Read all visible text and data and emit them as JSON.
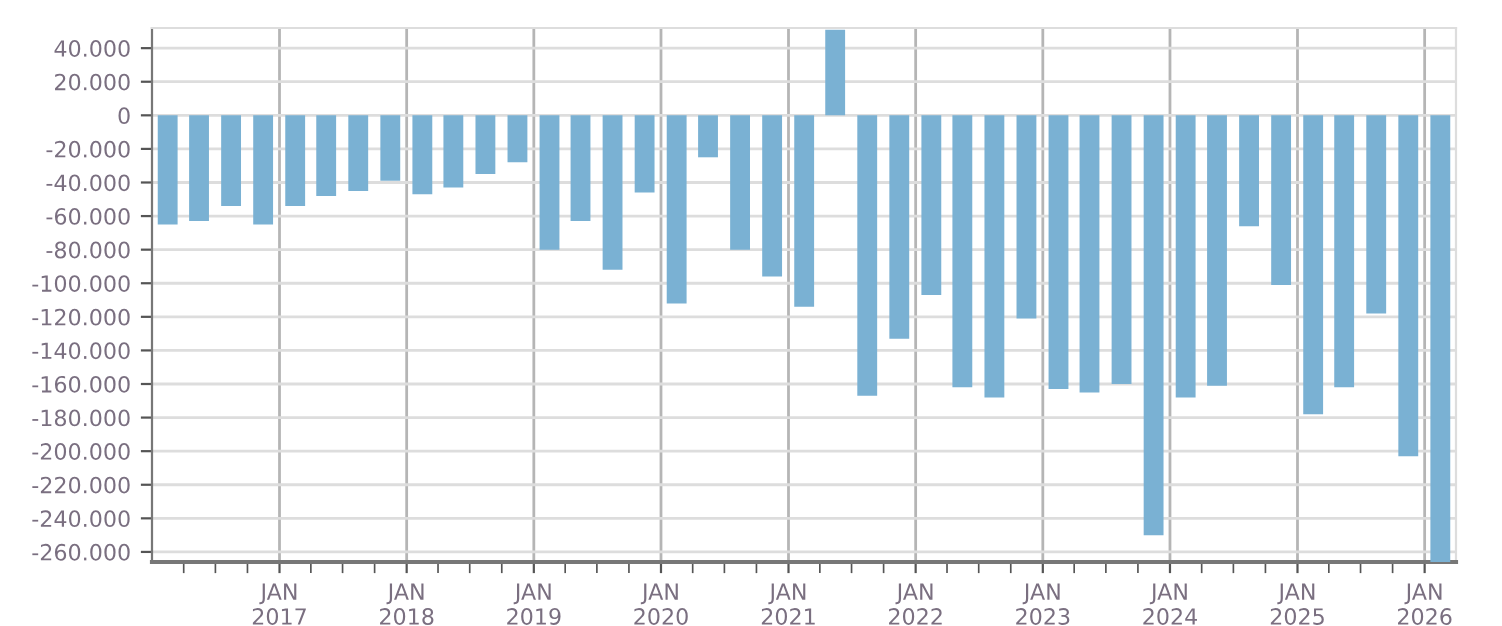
{
  "chart_data": {
    "type": "bar",
    "color": "#7ab1d3",
    "x": [
      "2016-02-15",
      "2016-05-15",
      "2016-08-15",
      "2016-11-15",
      "2017-02-15",
      "2017-05-15",
      "2017-08-15",
      "2017-11-15",
      "2018-02-15",
      "2018-05-15",
      "2018-08-15",
      "2018-11-15",
      "2019-02-15",
      "2019-05-15",
      "2019-08-15",
      "2019-11-15",
      "2020-02-15",
      "2020-05-15",
      "2020-08-15",
      "2020-11-15",
      "2021-02-15",
      "2021-05-15",
      "2021-08-15",
      "2021-11-15",
      "2022-02-15",
      "2022-05-15",
      "2022-08-15",
      "2022-11-15",
      "2023-02-15",
      "2023-05-15",
      "2023-08-15",
      "2023-11-15",
      "2024-02-15",
      "2024-05-15",
      "2024-08-15",
      "2024-11-15",
      "2025-02-15",
      "2025-05-15",
      "2025-08-15",
      "2025-11-15",
      "2026-02-15"
    ],
    "values": [
      -65000,
      -63000,
      -54000,
      -65000,
      -54000,
      -48000,
      -45000,
      -39000,
      -47000,
      -43000,
      -35000,
      -28000,
      -80000,
      -63000,
      -92000,
      -46000,
      -112000,
      -25000,
      -80000,
      -96000,
      -114000,
      51000,
      -167000,
      -133000,
      -107000,
      -162000,
      -168000,
      -121000,
      -163000,
      -165000,
      -160000,
      -250000,
      -168000,
      -161000,
      -66000,
      -101000,
      -178000,
      -162000,
      -118000,
      -203000,
      -266000
    ],
    "xlim": [
      "2016-01-01",
      "2026-04-01"
    ],
    "xticks": [
      {
        "value": "2016-04-01",
        "label": null
      },
      {
        "value": "2016-07-01",
        "label": null
      },
      {
        "value": "2016-10-01",
        "label": null
      },
      {
        "value": "2017-01-01",
        "label": "JAN\n2017"
      },
      {
        "value": "2017-04-01",
        "label": null
      },
      {
        "value": "2017-07-01",
        "label": null
      },
      {
        "value": "2017-10-01",
        "label": null
      },
      {
        "value": "2018-01-01",
        "label": "JAN\n2018"
      },
      {
        "value": "2018-04-01",
        "label": null
      },
      {
        "value": "2018-07-01",
        "label": null
      },
      {
        "value": "2018-10-01",
        "label": null
      },
      {
        "value": "2019-01-01",
        "label": "JAN\n2019"
      },
      {
        "value": "2019-04-01",
        "label": null
      },
      {
        "value": "2019-07-01",
        "label": null
      },
      {
        "value": "2019-10-01",
        "label": null
      },
      {
        "value": "2020-01-01",
        "label": "JAN\n2020"
      },
      {
        "value": "2020-04-01",
        "label": null
      },
      {
        "value": "2020-07-01",
        "label": null
      },
      {
        "value": "2020-10-01",
        "label": null
      },
      {
        "value": "2021-01-01",
        "label": "JAN\n2021"
      },
      {
        "value": "2021-04-01",
        "label": null
      },
      {
        "value": "2021-07-01",
        "label": null
      },
      {
        "value": "2021-10-01",
        "label": null
      },
      {
        "value": "2022-01-01",
        "label": "JAN\n2022"
      },
      {
        "value": "2022-04-01",
        "label": null
      },
      {
        "value": "2022-07-01",
        "label": null
      },
      {
        "value": "2022-10-01",
        "label": null
      },
      {
        "value": "2023-01-01",
        "label": "JAN\n2023"
      },
      {
        "value": "2023-04-01",
        "label": null
      },
      {
        "value": "2023-07-01",
        "label": null
      },
      {
        "value": "2023-10-01",
        "label": null
      },
      {
        "value": "2024-01-01",
        "label": "JAN\n2024"
      },
      {
        "value": "2024-04-01",
        "label": null
      },
      {
        "value": "2024-07-01",
        "label": null
      },
      {
        "value": "2024-10-01",
        "label": null
      },
      {
        "value": "2025-01-01",
        "label": "JAN\n2025"
      },
      {
        "value": "2025-04-01",
        "label": null
      },
      {
        "value": "2025-07-01",
        "label": null
      },
      {
        "value": "2025-10-01",
        "label": null
      },
      {
        "value": "2026-01-01",
        "label": "JAN\n2026"
      }
    ],
    "ylim": [
      -266000,
      52000
    ],
    "yticks": [
      {
        "value": 40000,
        "label": "40.000"
      },
      {
        "value": 20000,
        "label": "20.000"
      },
      0,
      {
        "value": -20000,
        "label": "-20.000"
      },
      {
        "value": -40000,
        "label": "-40.000"
      },
      {
        "value": -60000,
        "label": "-60.000"
      },
      {
        "value": -80000,
        "label": "-80.000"
      },
      {
        "value": -100000,
        "label": "-100.000"
      },
      {
        "value": -120000,
        "label": "-120.000"
      },
      {
        "value": -140000,
        "label": "-140.000"
      },
      {
        "value": -160000,
        "label": "-160.000"
      },
      {
        "value": -180000,
        "label": "-180.000"
      },
      {
        "value": -200000,
        "label": "-200.000"
      },
      {
        "value": -220000,
        "label": "-220.000"
      },
      {
        "value": -240000,
        "label": "-240.000"
      },
      {
        "value": -260000,
        "label": "-260.000"
      }
    ],
    "grid": true,
    "legend": false
  }
}
